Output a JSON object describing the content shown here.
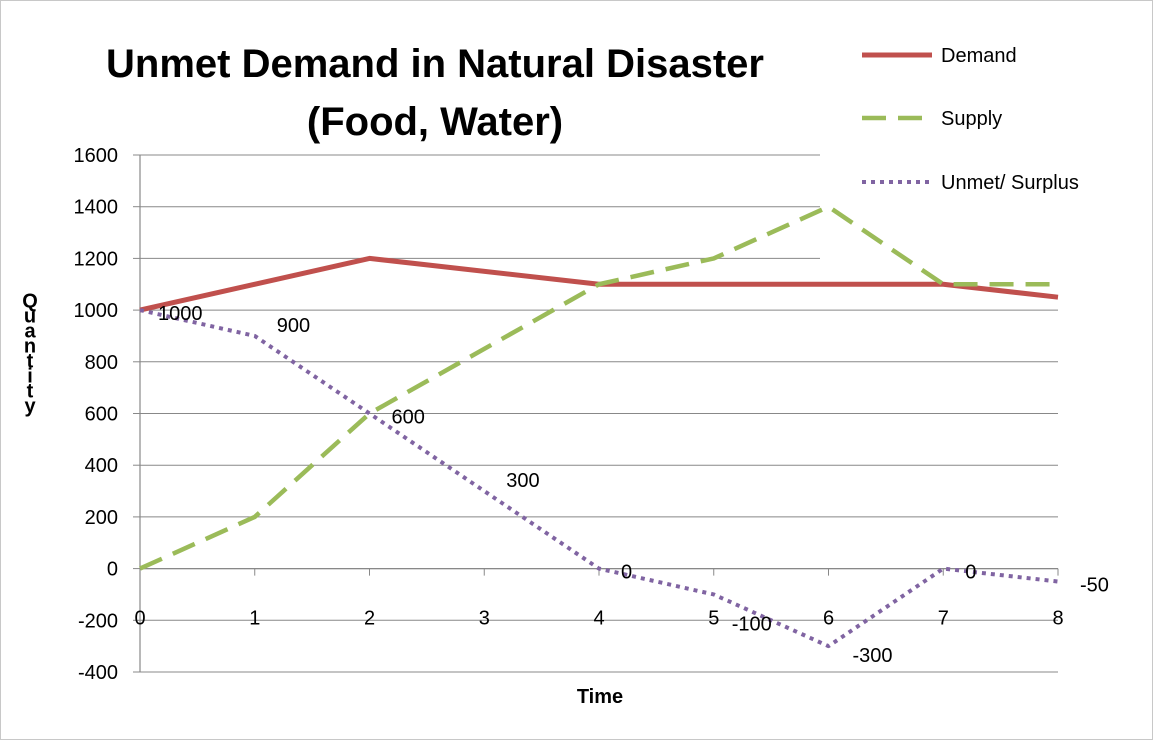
{
  "chart_data": {
    "type": "line",
    "title_line1": "Unmet Demand in Natural Disaster",
    "title_line2": "(Food, Water)",
    "xlabel": "Time",
    "ylabel": "Quantity",
    "x": [
      0,
      1,
      2,
      3,
      4,
      5,
      6,
      7,
      8
    ],
    "x_ticks": [
      "0",
      "1",
      "2",
      "3",
      "4",
      "5",
      "6",
      "7",
      "8"
    ],
    "y_ticks": [
      "1600",
      "1400",
      "1200",
      "1000",
      "800",
      "600",
      "400",
      "200",
      "0",
      "-200",
      "-400"
    ],
    "ylim": [
      -400,
      1600
    ],
    "grid": true,
    "legend_position": "top-right",
    "series": [
      {
        "name": "Demand",
        "color": "#c0504d",
        "style": "solid",
        "x": [
          0,
          2,
          4,
          7,
          8
        ],
        "values": [
          1000,
          1200,
          1100,
          1100,
          1050
        ]
      },
      {
        "name": "Supply",
        "color": "#9bbb59",
        "style": "dashed",
        "x": [
          0,
          1,
          2,
          4,
          5,
          6,
          7,
          8
        ],
        "values": [
          0,
          200,
          600,
          1100,
          1200,
          1400,
          1100,
          1100
        ]
      },
      {
        "name": "Unmet/ Surplus",
        "color": "#8064a2",
        "style": "dotted",
        "x": [
          0,
          1,
          2,
          3,
          4,
          5,
          6,
          7,
          8
        ],
        "values": [
          1000,
          900,
          600,
          300,
          0,
          -100,
          -300,
          0,
          -50
        ]
      }
    ],
    "data_labels": [
      {
        "text": "1000",
        "x": 0,
        "y": 1000
      },
      {
        "text": "900",
        "x": 1,
        "y": 900
      },
      {
        "text": "600",
        "x": 2,
        "y": 600
      },
      {
        "text": "300",
        "x": 3,
        "y": 300
      },
      {
        "text": "0",
        "x": 4,
        "y": 0
      },
      {
        "text": "-100",
        "x": 5,
        "y": -100
      },
      {
        "text": "-300",
        "x": 6,
        "y": -300
      },
      {
        "text": "0",
        "x": 7,
        "y": 0
      },
      {
        "text": "-50",
        "x": 8,
        "y": -50
      }
    ]
  }
}
